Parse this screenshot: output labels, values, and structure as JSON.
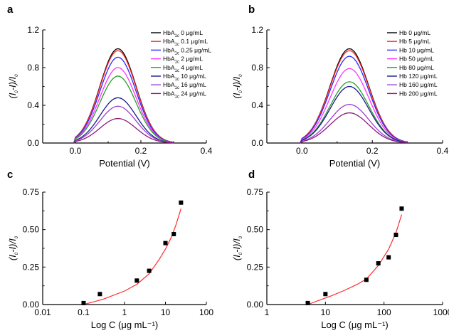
{
  "chart_data": [
    {
      "panel": "a",
      "type": "line",
      "xlabel": "Potential (V)",
      "xlim": [
        -0.1,
        0.4
      ],
      "ylim": [
        0,
        1.2
      ],
      "xticks": [
        "0.0",
        "0.2",
        "0.4"
      ],
      "yticks": [
        "0.0",
        "0.4",
        "0.8",
        "1.2"
      ],
      "legend_position": "top-right",
      "series": [
        {
          "name": "HbA1c 0 μg/mL",
          "label_main": "HbA",
          "label_sub": "1c",
          "label_rest": " 0 μg/mL",
          "color": "#000000",
          "peak": 1.0,
          "peak_x": 0.13
        },
        {
          "name": "HbA1c 0.1 μg/mL",
          "label_main": "HbA",
          "label_sub": "1c",
          "label_rest": " 0.1 μg/mL",
          "color": "#ff2a2a",
          "peak": 0.98,
          "peak_x": 0.13
        },
        {
          "name": "HbA1c 0.25 μg/mL",
          "label_main": "HbA",
          "label_sub": "1c",
          "label_rest": " 0.25 μg/mL",
          "color": "#2a2aff",
          "peak": 0.91,
          "peak_x": 0.13
        },
        {
          "name": "HbA1c 2 μg/mL",
          "label_main": "HbA",
          "label_sub": "1c",
          "label_rest": " 2 μg/mL",
          "color": "#ff33ff",
          "peak": 0.8,
          "peak_x": 0.13
        },
        {
          "name": "HbA1c 4 μg/mL",
          "label_main": "HbA",
          "label_sub": "1c",
          "label_rest": " 4 μg/mL",
          "color": "#2a9e2a",
          "peak": 0.71,
          "peak_x": 0.13
        },
        {
          "name": "HbA1c 10 μg/mL",
          "label_main": "HbA",
          "label_sub": "1c",
          "label_rest": " 10 μg/mL",
          "color": "#1a1a8c",
          "peak": 0.48,
          "peak_x": 0.13
        },
        {
          "name": "HbA1c 16 μg/mL",
          "label_main": "HbA",
          "label_sub": "1c",
          "label_rest": " 16 μg/mL",
          "color": "#9b3fd6",
          "peak": 0.39,
          "peak_x": 0.13
        },
        {
          "name": "HbA1c 24 μg/mL",
          "label_main": "HbA",
          "label_sub": "1c",
          "label_rest": " 24 μg/mL",
          "color": "#8b1a7a",
          "peak": 0.26,
          "peak_x": 0.13
        }
      ]
    },
    {
      "panel": "b",
      "type": "line",
      "xlabel": "Potential (V)",
      "xlim": [
        -0.1,
        0.4
      ],
      "ylim": [
        0,
        1.2
      ],
      "xticks": [
        "0.0",
        "0.2",
        "0.4"
      ],
      "yticks": [
        "0.0",
        "0.4",
        "0.8",
        "1.2"
      ],
      "legend_position": "top-right",
      "series": [
        {
          "name": "Hb 0 μg/mL",
          "label_main": "Hb",
          "label_sub": "",
          "label_rest": " 0 μg/mL",
          "color": "#000000",
          "peak": 1.0,
          "peak_x": 0.135
        },
        {
          "name": "Hb 5 μg/mL",
          "label_main": "Hb",
          "label_sub": "",
          "label_rest": " 5 μg/mL",
          "color": "#ff2a2a",
          "peak": 0.98,
          "peak_x": 0.135
        },
        {
          "name": "Hb 10 μg/mL",
          "label_main": "Hb",
          "label_sub": "",
          "label_rest": " 10 μg/mL",
          "color": "#2a2aff",
          "peak": 0.92,
          "peak_x": 0.135
        },
        {
          "name": "Hb 50 μg/mL",
          "label_main": "Hb",
          "label_sub": "",
          "label_rest": " 50 μg/mL",
          "color": "#ff33ff",
          "peak": 0.79,
          "peak_x": 0.135
        },
        {
          "name": "Hb 80 μg/mL",
          "label_main": "Hb",
          "label_sub": "",
          "label_rest": " 80 μg/mL",
          "color": "#2a9e2a",
          "peak": 0.65,
          "peak_x": 0.135
        },
        {
          "name": "Hb 120 μg/mL",
          "label_main": "Hb",
          "label_sub": "",
          "label_rest": " 120 μg/mL",
          "color": "#1a1a8c",
          "peak": 0.6,
          "peak_x": 0.135
        },
        {
          "name": "Hb 160 μg/mL",
          "label_main": "Hb",
          "label_sub": "",
          "label_rest": " 160 μg/mL",
          "color": "#9b3fd6",
          "peak": 0.41,
          "peak_x": 0.135
        },
        {
          "name": "Hb 200 μg/mL",
          "label_main": "Hb",
          "label_sub": "",
          "label_rest": " 200 μg/mL",
          "color": "#8b1a7a",
          "peak": 0.32,
          "peak_x": 0.135
        }
      ]
    },
    {
      "panel": "c",
      "type": "scatter",
      "xlabel": "Log C (μg mL⁻¹)",
      "xscale": "log",
      "xlim": [
        0.01,
        100
      ],
      "ylim": [
        0,
        0.75
      ],
      "xticks": [
        "0.01",
        "0.1",
        "1",
        "10",
        "100"
      ],
      "yticks": [
        "0.00",
        "0.25",
        "0.50",
        "0.75"
      ],
      "points": {
        "x": [
          0.1,
          0.25,
          2,
          4,
          10,
          16,
          24
        ],
        "y": [
          0.01,
          0.07,
          0.16,
          0.225,
          0.41,
          0.47,
          0.68
        ]
      },
      "fit": {
        "color": "#ff2a2a",
        "x": [
          0.1,
          0.3,
          1,
          2,
          4,
          7,
          10,
          14,
          18,
          24
        ],
        "y": [
          0.0,
          0.035,
          0.09,
          0.135,
          0.205,
          0.3,
          0.37,
          0.45,
          0.53,
          0.64
        ]
      }
    },
    {
      "panel": "d",
      "type": "scatter",
      "xlabel": "Log C (μg mL⁻¹)",
      "xscale": "log",
      "xlim": [
        1,
        1000
      ],
      "ylim": [
        0,
        0.75
      ],
      "xticks": [
        "1",
        "10",
        "100",
        "1000"
      ],
      "yticks": [
        "0.00",
        "0.25",
        "0.50",
        "0.75"
      ],
      "points": {
        "x": [
          5,
          10,
          50,
          80,
          120,
          160,
          200
        ],
        "y": [
          0.01,
          0.07,
          0.165,
          0.275,
          0.315,
          0.465,
          0.64
        ]
      },
      "fit": {
        "color": "#ff2a2a",
        "x": [
          5,
          8,
          12,
          20,
          35,
          50,
          80,
          120,
          160,
          200
        ],
        "y": [
          0.0,
          0.03,
          0.055,
          0.09,
          0.135,
          0.17,
          0.26,
          0.37,
          0.48,
          0.6
        ]
      }
    }
  ]
}
